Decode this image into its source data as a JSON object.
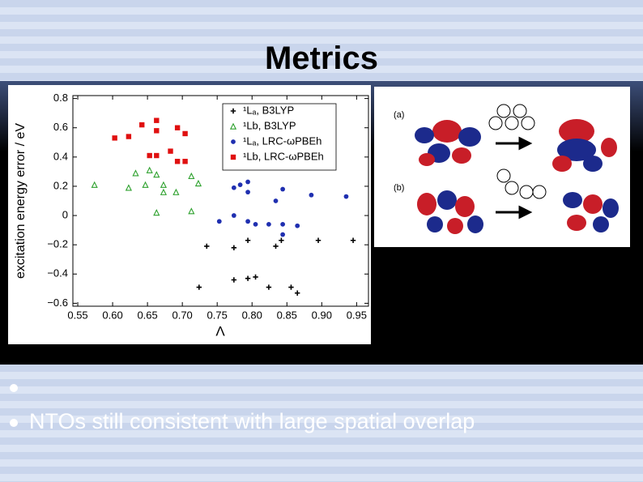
{
  "title": "Metrics",
  "bullets": [
    "NTOs still consistent with large spatial overlap"
  ],
  "figure_labels": [
    "(a)",
    "(b)"
  ],
  "chart_data": {
    "type": "scatter",
    "xlabel": "Λ",
    "ylabel": "excitation energy error / eV",
    "xlim": [
      0.543,
      0.967
    ],
    "ylim": [
      -0.62,
      0.82
    ],
    "xticks": [
      0.55,
      {
        "value": 0.6,
        "label": "0.60"
      },
      0.65,
      {
        "value": 0.7,
        "label": "0.70"
      },
      0.75,
      {
        "value": 0.8,
        "label": "0.80"
      },
      0.85,
      {
        "value": 0.9,
        "label": "0.90"
      },
      0.95
    ],
    "yticks": [
      {
        "value": -0.6,
        "label": "−0.6"
      },
      {
        "value": -0.4,
        "label": "−0.4"
      },
      {
        "value": -0.2,
        "label": "−0.2"
      },
      0,
      0.2,
      0.4,
      0.6,
      0.8
    ],
    "grid": false,
    "legend": "upper right",
    "series": [
      {
        "name": "¹Lₐ, B3LYP",
        "color": "#000000",
        "marker": "plus",
        "x": [
          0.735,
          0.774,
          0.794,
          0.834,
          0.842,
          0.895,
          0.945,
          0.724,
          0.774,
          0.794,
          0.805,
          0.824,
          0.856,
          0.865
        ],
        "values": [
          -0.21,
          -0.22,
          -0.17,
          -0.21,
          -0.17,
          -0.17,
          -0.17,
          -0.49,
          -0.44,
          -0.43,
          -0.42,
          -0.49,
          -0.49,
          -0.53
        ]
      },
      {
        "name": "¹Lb, B3LYP",
        "color": "#2ca02c",
        "marker": "triangle",
        "x": [
          0.574,
          0.623,
          0.633,
          0.653,
          0.663,
          0.647,
          0.673,
          0.673,
          0.691,
          0.713,
          0.723,
          0.663,
          0.713
        ],
        "values": [
          0.21,
          0.19,
          0.29,
          0.31,
          0.28,
          0.21,
          0.21,
          0.16,
          0.16,
          0.27,
          0.22,
          0.02,
          0.03
        ]
      },
      {
        "name": "¹Lₐ, LRC-ωPBEh",
        "color": "#1f2fb0",
        "marker": "circle",
        "x": [
          0.774,
          0.783,
          0.794,
          0.794,
          0.834,
          0.844,
          0.885,
          0.935,
          0.753,
          0.774,
          0.794,
          0.805,
          0.824,
          0.844,
          0.844,
          0.865
        ],
        "values": [
          0.19,
          0.21,
          0.23,
          0.16,
          0.1,
          0.18,
          0.14,
          0.13,
          -0.04,
          0,
          -0.04,
          -0.06,
          -0.06,
          -0.13,
          -0.06,
          -0.07
        ]
      },
      {
        "name": "¹Lb, LRC-ωPBEh",
        "color": "#e01010",
        "marker": "square",
        "x": [
          0.603,
          0.623,
          0.642,
          0.663,
          0.663,
          0.693,
          0.704,
          0.653,
          0.663,
          0.683,
          0.693,
          0.704
        ],
        "values": [
          0.53,
          0.54,
          0.62,
          0.65,
          0.58,
          0.6,
          0.56,
          0.41,
          0.41,
          0.44,
          0.37,
          0.37
        ]
      }
    ]
  }
}
